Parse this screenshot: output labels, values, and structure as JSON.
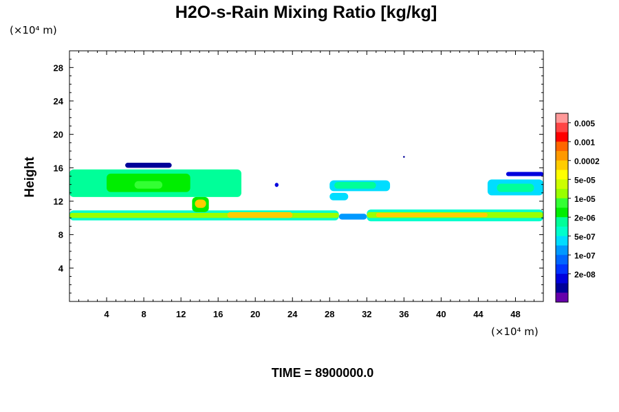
{
  "chart_data": {
    "type": "heatmap",
    "title": "H2O-s-Rain Mixing Ratio [kg/kg]",
    "ylabel": "Height",
    "x_scale_note": "(×10⁴ m)",
    "y_scale_note": "(×10⁴ m)",
    "time_label": "TIME = 8900000.0",
    "xlim": [
      0,
      51
    ],
    "ylim": [
      0,
      30
    ],
    "x_ticks": [
      4,
      8,
      12,
      16,
      20,
      24,
      28,
      32,
      36,
      40,
      44,
      48
    ],
    "y_ticks": [
      4,
      8,
      12,
      16,
      20,
      24,
      28
    ],
    "legend": {
      "labels": [
        "0.005",
        "0.001",
        "0.0002",
        "5e-05",
        "1e-05",
        "2e-06",
        "5e-07",
        "1e-07",
        "2e-08"
      ],
      "colors": [
        "#ff9999",
        "#ff4444",
        "#ff0000",
        "#ff6600",
        "#ff9900",
        "#ffcc00",
        "#ffff00",
        "#ccff00",
        "#99ff00",
        "#33ff33",
        "#00ee00",
        "#00ff99",
        "#00ffcc",
        "#00ddff",
        "#0099ff",
        "#0066ff",
        "#0033ff",
        "#0000dd",
        "#000099",
        "#6600aa"
      ]
    },
    "regions": [
      {
        "x0": 0,
        "x1": 18.5,
        "y0": 12.5,
        "y1": 15.8,
        "level": 11
      },
      {
        "x0": 4,
        "x1": 13,
        "y0": 13.1,
        "y1": 15.3,
        "level": 10
      },
      {
        "x0": 7,
        "x1": 10,
        "y0": 13.5,
        "y1": 14.4,
        "level": 9
      },
      {
        "x0": 6,
        "x1": 11,
        "y0": 16.0,
        "y1": 16.6,
        "level": 18
      },
      {
        "x0": 22.1,
        "x1": 22.5,
        "y0": 13.7,
        "y1": 14.2,
        "level": 17
      },
      {
        "x0": 28,
        "x1": 34.5,
        "y0": 13.2,
        "y1": 14.5,
        "level": 13
      },
      {
        "x0": 28.5,
        "x1": 33,
        "y0": 13.5,
        "y1": 14.3,
        "level": 11
      },
      {
        "x0": 28,
        "x1": 30,
        "y0": 12.1,
        "y1": 13.0,
        "level": 13
      },
      {
        "x0": 45,
        "x1": 51,
        "y0": 12.7,
        "y1": 14.6,
        "level": 13
      },
      {
        "x0": 46,
        "x1": 50,
        "y0": 13.1,
        "y1": 14.1,
        "level": 11
      },
      {
        "x0": 47,
        "x1": 51,
        "y0": 15.0,
        "y1": 15.5,
        "level": 17
      },
      {
        "x0": 35.9,
        "x1": 36.1,
        "y0": 17.2,
        "y1": 17.4,
        "level": 18
      },
      {
        "x0": 0,
        "x1": 29,
        "y0": 9.7,
        "y1": 10.9,
        "level": 12
      },
      {
        "x0": 0,
        "x1": 29,
        "y0": 10.0,
        "y1": 10.6,
        "level": 8
      },
      {
        "x0": 17,
        "x1": 24,
        "y0": 10.0,
        "y1": 10.7,
        "level": 5
      },
      {
        "x0": 32,
        "x1": 51,
        "y0": 9.6,
        "y1": 11.0,
        "level": 12
      },
      {
        "x0": 32,
        "x1": 51,
        "y0": 10.0,
        "y1": 10.7,
        "level": 8
      },
      {
        "x0": 33,
        "x1": 45,
        "y0": 10.1,
        "y1": 10.6,
        "level": 5
      },
      {
        "x0": 13.2,
        "x1": 15,
        "y0": 10.7,
        "y1": 12.5,
        "level": 10
      },
      {
        "x0": 13.5,
        "x1": 14.7,
        "y0": 11.2,
        "y1": 12.2,
        "level": 5
      },
      {
        "x0": 29,
        "x1": 32,
        "y0": 9.8,
        "y1": 10.5,
        "level": 14
      }
    ]
  }
}
